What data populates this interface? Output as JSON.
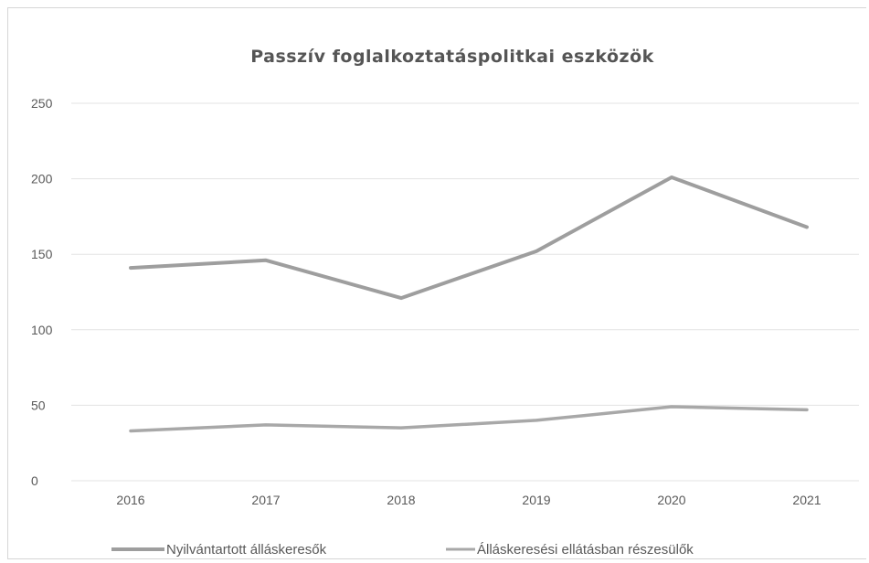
{
  "chart_data": {
    "type": "line",
    "title": "Passzív foglalkoztatáspolitkai eszközök",
    "xlabel": "",
    "ylabel": "",
    "categories": [
      "2016",
      "2017",
      "2018",
      "2019",
      "2020",
      "2021"
    ],
    "ylim": [
      0,
      250
    ],
    "yticks": [
      0,
      50,
      100,
      150,
      200,
      250
    ],
    "grid": true,
    "legend_position": "bottom",
    "series": [
      {
        "name": "Nyilvántartott álláskeresők",
        "values": [
          141,
          146,
          121,
          152,
          201,
          168
        ],
        "color": "#9e9e9e"
      },
      {
        "name": "Álláskeresési ellátásban részesülők",
        "values": [
          33,
          37,
          35,
          40,
          49,
          47
        ],
        "color": "#a8a8a8"
      }
    ]
  }
}
